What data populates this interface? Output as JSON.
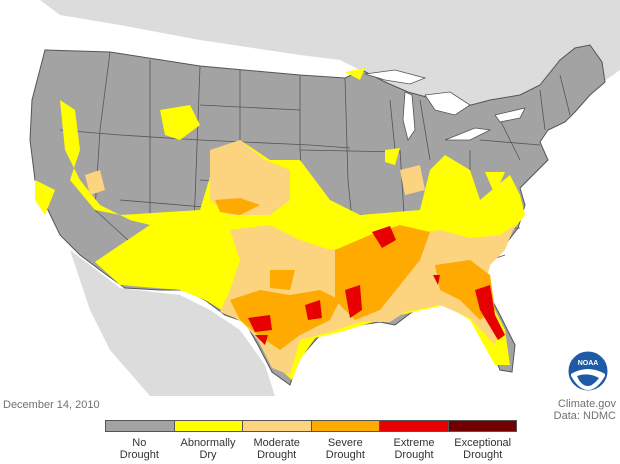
{
  "map": {
    "date_label": "December 14, 2010",
    "credit_line1": "Climate.gov",
    "credit_line2": "Data: NDMC",
    "logo_text": "NOAA"
  },
  "legend": {
    "categories": [
      {
        "label": "No Drought",
        "color": "#a3a3a3"
      },
      {
        "label": "Abnormally Dry",
        "color": "#ffff00"
      },
      {
        "label": "Moderate Drought",
        "color": "#fcd37f"
      },
      {
        "label": "Severe Drought",
        "color": "#ffaa00"
      },
      {
        "label": "Extreme Drought",
        "color": "#e60000"
      },
      {
        "label": "Exceptional Drought",
        "color": "#730000"
      }
    ]
  },
  "colors": {
    "water": "#ffffff",
    "neighbor_land": "#dcdcdc",
    "state_border": "#555555"
  }
}
